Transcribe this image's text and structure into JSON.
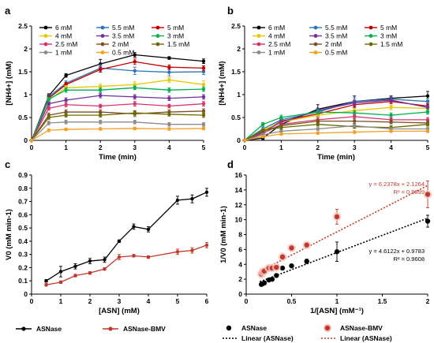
{
  "chart_data": [
    {
      "panel": "a",
      "type": "line",
      "xlabel": "Time (min)",
      "ylabel": "[NH4+] (mM)",
      "xlim": [
        0,
        5
      ],
      "ylim": [
        0,
        2.5
      ],
      "xticks": [
        "0",
        "1",
        "2",
        "3",
        "4",
        "5"
      ],
      "yticks": [
        "0",
        "0.5",
        "1",
        "1.5",
        "2",
        "2.5"
      ],
      "legend_position": "top",
      "x": [
        0,
        0.5,
        1,
        2,
        3,
        4,
        5
      ],
      "series": [
        {
          "name": "6 mM",
          "color": "#000000",
          "values": [
            0,
            0.97,
            1.42,
            1.67,
            1.87,
            1.8,
            1.73
          ],
          "err": [
            0,
            0.05,
            0.04,
            0.1,
            0.05,
            0.03,
            0.05
          ]
        },
        {
          "name": "5.5 mM",
          "color": "#2e75b6",
          "values": [
            0,
            0.95,
            1.25,
            1.58,
            1.52,
            1.49,
            1.5
          ],
          "err": [
            0,
            0.05,
            0.05,
            0.08,
            0.08,
            0.08,
            0.06
          ]
        },
        {
          "name": "5 mM",
          "color": "#c00000",
          "values": [
            0,
            0.92,
            1.22,
            1.55,
            1.72,
            1.6,
            1.58
          ],
          "err": [
            0,
            0.05,
            0.05,
            0.06,
            0.06,
            0.05,
            0.05
          ]
        },
        {
          "name": "4 mM",
          "color": "#e6c700",
          "values": [
            0,
            0.88,
            1.15,
            1.18,
            1.22,
            1.32,
            1.22
          ],
          "err": [
            0,
            0.05,
            0.05,
            0.05,
            0.06,
            0.05,
            0.08
          ]
        },
        {
          "name": "3.5 mM",
          "color": "#7030a0",
          "values": [
            0,
            0.8,
            0.88,
            0.98,
            0.95,
            0.92,
            0.95
          ],
          "err": [
            0,
            0.04,
            0.05,
            0.05,
            0.05,
            0.05,
            0.05
          ]
        },
        {
          "name": "3 mM",
          "color": "#00b050",
          "values": [
            0,
            0.9,
            1.1,
            1.1,
            1.15,
            1.1,
            1.12
          ],
          "err": [
            0,
            0.04,
            0.05,
            0.05,
            0.04,
            0.05,
            0.05
          ]
        },
        {
          "name": "2.5 mM",
          "color": "#d6336c",
          "values": [
            0,
            0.7,
            0.78,
            0.75,
            0.8,
            0.75,
            0.8
          ],
          "err": [
            0,
            0.04,
            0.05,
            0.04,
            0.05,
            0.04,
            0.05
          ]
        },
        {
          "name": "2 mM",
          "color": "#7f4f24",
          "values": [
            0,
            0.55,
            0.62,
            0.62,
            0.58,
            0.62,
            0.64
          ],
          "err": [
            0,
            0.05,
            0.05,
            0.05,
            0.06,
            0.05,
            0.05
          ]
        },
        {
          "name": "1.5 mM",
          "color": "#6b6b00",
          "values": [
            0,
            0.5,
            0.55,
            0.55,
            0.6,
            0.57,
            0.55
          ],
          "err": [
            0,
            0.04,
            0.04,
            0.04,
            0.05,
            0.04,
            0.05
          ]
        },
        {
          "name": "1 mM",
          "color": "#8c8c8c",
          "values": [
            0,
            0.38,
            0.4,
            0.4,
            0.4,
            0.35,
            0.35
          ],
          "err": [
            0,
            0.04,
            0.04,
            0.04,
            0.04,
            0.04,
            0.04
          ]
        },
        {
          "name": "0.5 mM",
          "color": "#f4a020",
          "values": [
            0,
            0.22,
            0.24,
            0.25,
            0.26,
            0.25,
            0.26
          ],
          "err": [
            0,
            0.03,
            0.03,
            0.03,
            0.03,
            0.03,
            0.03
          ]
        }
      ]
    },
    {
      "panel": "b",
      "type": "line",
      "xlabel": "Time (min)",
      "ylabel": "[NH4+] (mM)",
      "xlim": [
        0,
        5
      ],
      "ylim": [
        0,
        2.5
      ],
      "xticks": [
        "0",
        "1",
        "2",
        "3",
        "4",
        "5"
      ],
      "yticks": [
        "0",
        "0.5",
        "1",
        "1.5",
        "2",
        "2.5"
      ],
      "legend_position": "top",
      "x": [
        0,
        0.5,
        1,
        2,
        3,
        4,
        5
      ],
      "series": [
        {
          "name": "6 mM",
          "color": "#000000",
          "values": [
            0,
            0.05,
            0.35,
            0.68,
            0.85,
            0.92,
            0.97
          ],
          "err": [
            0,
            0.03,
            0.05,
            0.1,
            0.12,
            0.05,
            0.1
          ]
        },
        {
          "name": "5.5 mM",
          "color": "#2e75b6",
          "values": [
            0,
            0.25,
            0.45,
            0.62,
            0.85,
            0.9,
            0.85
          ],
          "err": [
            0,
            0.04,
            0.05,
            0.07,
            0.08,
            0.05,
            0.06
          ]
        },
        {
          "name": "5 mM",
          "color": "#c00000",
          "values": [
            0,
            0.2,
            0.42,
            0.58,
            0.78,
            0.85,
            0.75
          ],
          "err": [
            0,
            0.04,
            0.05,
            0.06,
            0.06,
            0.05,
            0.05
          ]
        },
        {
          "name": "4 mM",
          "color": "#e6c700",
          "values": [
            0,
            0.22,
            0.4,
            0.55,
            0.65,
            0.72,
            0.7
          ],
          "err": [
            0,
            0.04,
            0.05,
            0.05,
            0.05,
            0.05,
            0.05
          ]
        },
        {
          "name": "3.5 mM",
          "color": "#7030a0",
          "values": [
            0,
            0.18,
            0.4,
            0.65,
            0.82,
            0.88,
            0.72
          ],
          "err": [
            0,
            0.04,
            0.05,
            0.05,
            0.06,
            0.05,
            0.05
          ]
        },
        {
          "name": "3 mM",
          "color": "#00b050",
          "values": [
            0,
            0.35,
            0.5,
            0.62,
            0.6,
            0.55,
            0.62
          ],
          "err": [
            0,
            0.04,
            0.05,
            0.05,
            0.05,
            0.05,
            0.05
          ]
        },
        {
          "name": "2.5 mM",
          "color": "#d6336c",
          "values": [
            0,
            0.15,
            0.35,
            0.45,
            0.52,
            0.45,
            0.45
          ],
          "err": [
            0,
            0.03,
            0.04,
            0.05,
            0.05,
            0.04,
            0.05
          ]
        },
        {
          "name": "2 mM",
          "color": "#7f4f24",
          "values": [
            0,
            0.2,
            0.32,
            0.42,
            0.42,
            0.4,
            0.38
          ],
          "err": [
            0,
            0.03,
            0.04,
            0.04,
            0.05,
            0.04,
            0.04
          ]
        },
        {
          "name": "1.5 mM",
          "color": "#6b6b00",
          "values": [
            0,
            0.22,
            0.28,
            0.35,
            0.3,
            0.28,
            0.35
          ],
          "err": [
            0,
            0.03,
            0.04,
            0.04,
            0.04,
            0.04,
            0.04
          ]
        },
        {
          "name": "1 mM",
          "color": "#8c8c8c",
          "values": [
            0,
            0.12,
            0.2,
            0.25,
            0.32,
            0.25,
            0.25
          ],
          "err": [
            0,
            0.03,
            0.03,
            0.03,
            0.04,
            0.03,
            0.03
          ]
        },
        {
          "name": "0.5 mM",
          "color": "#f4a020",
          "values": [
            0,
            0.08,
            0.14,
            0.16,
            0.18,
            0.2,
            0.2
          ],
          "err": [
            0,
            0.02,
            0.03,
            0.03,
            0.03,
            0.03,
            0.03
          ]
        }
      ]
    },
    {
      "panel": "c",
      "type": "line",
      "xlabel": "[ASN] (mM)",
      "ylabel": "V0 (mM min-1)",
      "xlim": [
        0,
        6
      ],
      "ylim": [
        0,
        0.9
      ],
      "xticks": [
        "0",
        "1",
        "2",
        "3",
        "4",
        "5",
        "6"
      ],
      "yticks": [
        "0",
        "0.1",
        "0.2",
        "0.3",
        "0.4",
        "0.5",
        "0.6",
        "0.7",
        "0.8",
        "0.9"
      ],
      "legend_position": "bottom",
      "series": [
        {
          "name": "ASNase",
          "color": "#000000",
          "x": [
            0.5,
            1,
            1.5,
            2,
            2.5,
            3,
            3.5,
            4,
            5,
            5.5,
            6
          ],
          "values": [
            0.1,
            0.17,
            0.21,
            0.25,
            0.26,
            0.4,
            0.51,
            0.49,
            0.71,
            0.72,
            0.77
          ],
          "err": [
            0.01,
            0.04,
            0.02,
            0.02,
            0.02,
            0.01,
            0.02,
            0.02,
            0.03,
            0.03,
            0.03
          ]
        },
        {
          "name": "ASNase-BMV",
          "color": "#c0392b",
          "x": [
            0.5,
            1,
            1.5,
            2,
            2.5,
            3,
            3.5,
            4,
            5,
            5.5,
            6
          ],
          "values": [
            0.07,
            0.09,
            0.14,
            0.16,
            0.19,
            0.28,
            0.29,
            0.28,
            0.32,
            0.33,
            0.37
          ],
          "err": [
            0.01,
            0.01,
            0.01,
            0.01,
            0.01,
            0.02,
            0.01,
            0.01,
            0.02,
            0.02,
            0.02
          ]
        }
      ]
    },
    {
      "panel": "d",
      "type": "scatter",
      "xlabel": "1/[ASN] (mM⁻¹)",
      "ylabel": "1/V0 (mM min-1)",
      "xlim": [
        0,
        2
      ],
      "ylim": [
        0,
        16
      ],
      "xticks": [
        "0",
        "0.5",
        "1",
        "1.5",
        "2"
      ],
      "yticks": [
        "0",
        "2",
        "4",
        "6",
        "8",
        "10",
        "12",
        "14",
        "16"
      ],
      "legend_position": "bottom",
      "series": [
        {
          "name": "ASNase",
          "color": "#000000",
          "x": [
            0.167,
            0.182,
            0.2,
            0.25,
            0.286,
            0.333,
            0.4,
            0.5,
            0.667,
            1,
            2
          ],
          "values": [
            1.3,
            1.4,
            1.5,
            1.9,
            2.0,
            2.5,
            3.5,
            3.8,
            4.4,
            5.7,
            9.8
          ],
          "err": [
            0.1,
            0.1,
            0.1,
            0.1,
            0.1,
            0.1,
            0.1,
            0.1,
            0.3,
            1.3,
            0.8
          ]
        },
        {
          "name": "ASNase-BMV",
          "color": "#c0392b",
          "x": [
            0.167,
            0.182,
            0.2,
            0.25,
            0.286,
            0.333,
            0.4,
            0.5,
            0.667,
            1,
            2
          ],
          "values": [
            2.7,
            3.0,
            3.1,
            3.5,
            3.5,
            3.6,
            5.0,
            6.2,
            6.6,
            10.4,
            13.4
          ],
          "err": [
            0.1,
            0.1,
            0.1,
            0.1,
            0.1,
            0.2,
            0.3,
            0.3,
            0.2,
            1.0,
            1.8
          ]
        }
      ],
      "trendlines": [
        {
          "name": "Linear  (ASNase)",
          "color": "#000000",
          "slope": 4.6122,
          "intercept": 0.9783,
          "equation": "y = 4.6122x + 0.9783",
          "r2": "R² = 0.9608"
        },
        {
          "name": "Linear  (ASNase)",
          "color": "#c0392b",
          "slope": 6.2378,
          "intercept": 2.1264,
          "equation": "y = 6.2378x + 2.1264",
          "r2": "R² = 0.9399"
        }
      ]
    }
  ]
}
